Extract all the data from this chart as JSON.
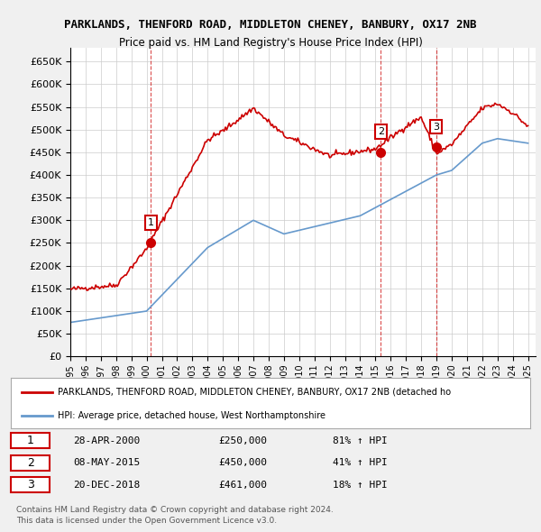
{
  "title": "PARKLANDS, THENFORD ROAD, MIDDLETON CHENEY, BANBURY, OX17 2NB",
  "subtitle": "Price paid vs. HM Land Registry's House Price Index (HPI)",
  "legend_label_red": "PARKLANDS, THENFORD ROAD, MIDDLETON CHENEY, BANBURY, OX17 2NB (detached ho",
  "legend_label_blue": "HPI: Average price, detached house, West Northamptonshire",
  "footer1": "Contains HM Land Registry data © Crown copyright and database right 2024.",
  "footer2": "This data is licensed under the Open Government Licence v3.0.",
  "transactions": [
    {
      "num": "1",
      "date": "28-APR-2000",
      "price": "£250,000",
      "hpi": "81% ↑ HPI"
    },
    {
      "num": "2",
      "date": "08-MAY-2015",
      "price": "£450,000",
      "hpi": "41% ↑ HPI"
    },
    {
      "num": "3",
      "date": "20-DEC-2018",
      "price": "£461,000",
      "hpi": "18% ↑ HPI"
    }
  ],
  "ylim": [
    0,
    680000
  ],
  "yticks": [
    0,
    50000,
    100000,
    150000,
    200000,
    250000,
    300000,
    350000,
    400000,
    450000,
    500000,
    550000,
    600000,
    650000
  ],
  "background_color": "#f0f0f0",
  "plot_background": "#ffffff",
  "red_color": "#cc0000",
  "blue_color": "#6699cc",
  "grid_color": "#cccccc",
  "sale_times": [
    2000.29,
    2015.36,
    2018.97
  ],
  "sale_prices": [
    250000,
    450000,
    461000
  ]
}
